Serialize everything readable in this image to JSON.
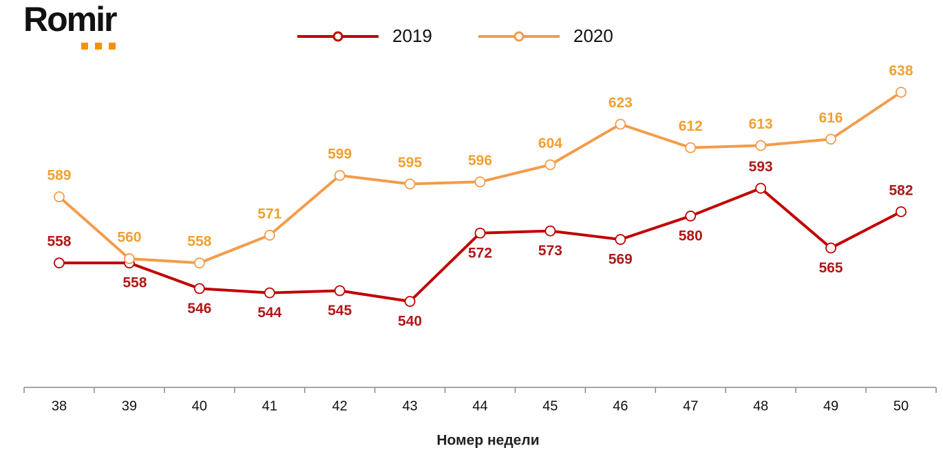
{
  "logo": "Romir",
  "chart_data": {
    "type": "line",
    "x_label": "Номер недели",
    "categories": [
      "38",
      "39",
      "40",
      "41",
      "42",
      "43",
      "44",
      "45",
      "46",
      "47",
      "48",
      "49",
      "50"
    ],
    "series": [
      {
        "name": "2019",
        "color": "#c00000",
        "values": [
          558,
          558,
          546,
          544,
          545,
          540,
          572,
          573,
          569,
          580,
          593,
          565,
          582
        ]
      },
      {
        "name": "2020",
        "color": "#f39c4a",
        "values": [
          589,
          560,
          558,
          571,
          599,
          595,
          596,
          604,
          623,
          612,
          613,
          616,
          638
        ]
      }
    ]
  }
}
